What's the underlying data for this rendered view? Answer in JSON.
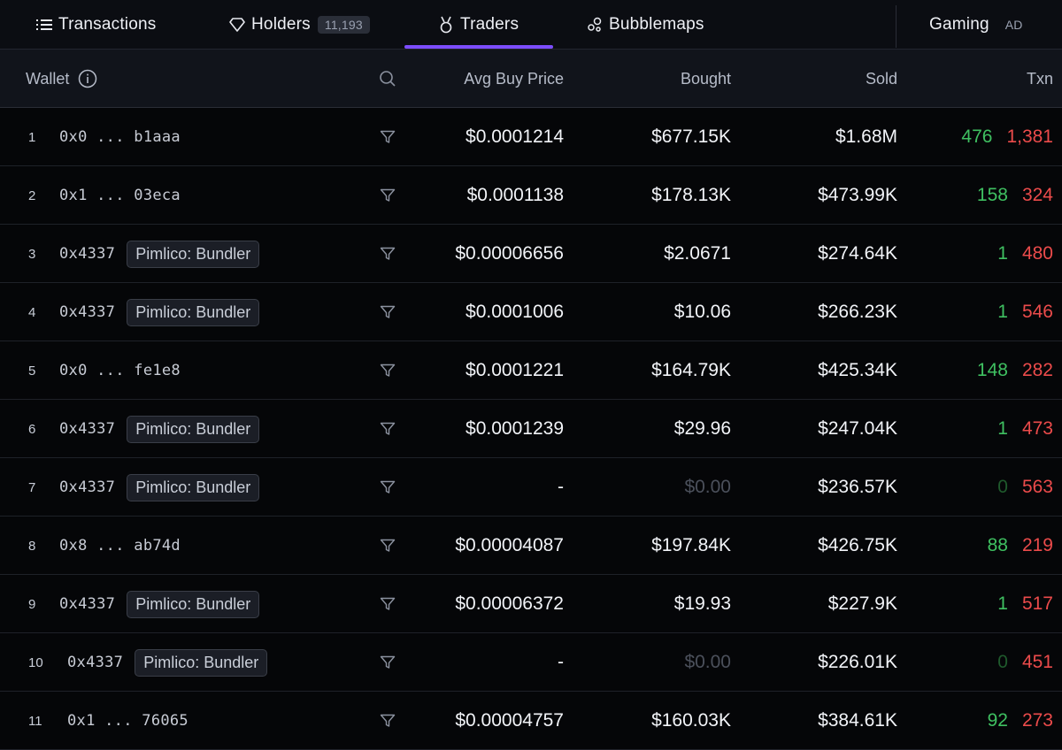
{
  "tabs": [
    {
      "label": "Transactions",
      "icon": "list-icon"
    },
    {
      "label": "Holders",
      "icon": "diamond-icon",
      "badge": "11,193"
    },
    {
      "label": "Traders",
      "icon": "medal-icon",
      "active": true
    },
    {
      "label": "Bubblemaps",
      "icon": "bubbles-icon"
    },
    {
      "label": "Gaming",
      "tag": "AD"
    }
  ],
  "columns": {
    "wallet": "Wallet",
    "avg_buy_price": "Avg Buy Price",
    "bought": "Bought",
    "sold": "Sold",
    "txn": "Txn"
  },
  "colors": {
    "accent": "#7c4dff",
    "buy": "#3fc061",
    "sell": "#ec4b4b"
  },
  "rows": [
    {
      "rank": "1",
      "address": "0x0 ... b1aaa",
      "label": "",
      "avg": "$0.0001214",
      "bought": "$677.15K",
      "sold": "$1.68M",
      "buys": "476",
      "sells": "1,381"
    },
    {
      "rank": "2",
      "address": "0x1 ... 03eca",
      "label": "",
      "avg": "$0.0001138",
      "bought": "$178.13K",
      "sold": "$473.99K",
      "buys": "158",
      "sells": "324"
    },
    {
      "rank": "3",
      "address": "0x4337",
      "label": "Pimlico: Bundler",
      "avg": "$0.00006656",
      "bought": "$2.0671",
      "sold": "$274.64K",
      "buys": "1",
      "sells": "480"
    },
    {
      "rank": "4",
      "address": "0x4337",
      "label": "Pimlico: Bundler",
      "avg": "$0.0001006",
      "bought": "$10.06",
      "sold": "$266.23K",
      "buys": "1",
      "sells": "546"
    },
    {
      "rank": "5",
      "address": "0x0 ... fe1e8",
      "label": "",
      "avg": "$0.0001221",
      "bought": "$164.79K",
      "sold": "$425.34K",
      "buys": "148",
      "sells": "282"
    },
    {
      "rank": "6",
      "address": "0x4337",
      "label": "Pimlico: Bundler",
      "avg": "$0.0001239",
      "bought": "$29.96",
      "sold": "$247.04K",
      "buys": "1",
      "sells": "473"
    },
    {
      "rank": "7",
      "address": "0x4337",
      "label": "Pimlico: Bundler",
      "avg": "-",
      "bought": "$0.00",
      "sold": "$236.57K",
      "buys": "0",
      "sells": "563"
    },
    {
      "rank": "8",
      "address": "0x8 ... ab74d",
      "label": "",
      "avg": "$0.00004087",
      "bought": "$197.84K",
      "sold": "$426.75K",
      "buys": "88",
      "sells": "219"
    },
    {
      "rank": "9",
      "address": "0x4337",
      "label": "Pimlico: Bundler",
      "avg": "$0.00006372",
      "bought": "$19.93",
      "sold": "$227.9K",
      "buys": "1",
      "sells": "517"
    },
    {
      "rank": "10",
      "address": "0x4337",
      "label": "Pimlico: Bundler",
      "avg": "-",
      "bought": "$0.00",
      "sold": "$226.01K",
      "buys": "0",
      "sells": "451"
    },
    {
      "rank": "11",
      "address": "0x1 ... 76065",
      "label": "",
      "avg": "$0.00004757",
      "bought": "$160.03K",
      "sold": "$384.61K",
      "buys": "92",
      "sells": "273"
    }
  ]
}
